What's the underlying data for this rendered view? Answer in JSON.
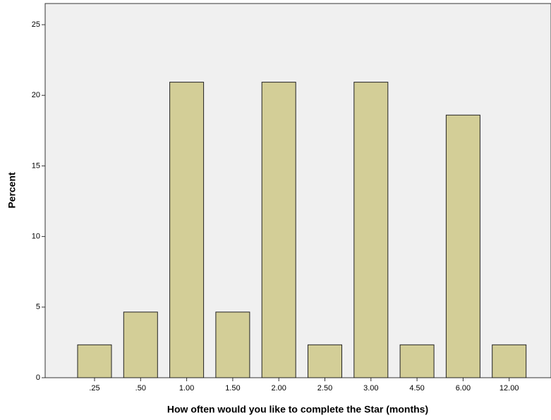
{
  "chart_data": {
    "type": "bar",
    "x_label": "How often would you like to complete the Star (months)",
    "y_label": "Percent",
    "categories": [
      ".25",
      ".50",
      "1.00",
      "1.50",
      "2.00",
      "2.50",
      "3.00",
      "4.50",
      "6.00",
      "12.00"
    ],
    "values": [
      2.33,
      4.65,
      20.93,
      4.65,
      20.93,
      2.33,
      20.93,
      2.33,
      18.6,
      2.33
    ],
    "color": "#d3ce97",
    "ylim": [
      0,
      26.5
    ],
    "yticks": [
      0,
      5,
      10,
      15,
      20,
      25
    ],
    "grid": false
  }
}
